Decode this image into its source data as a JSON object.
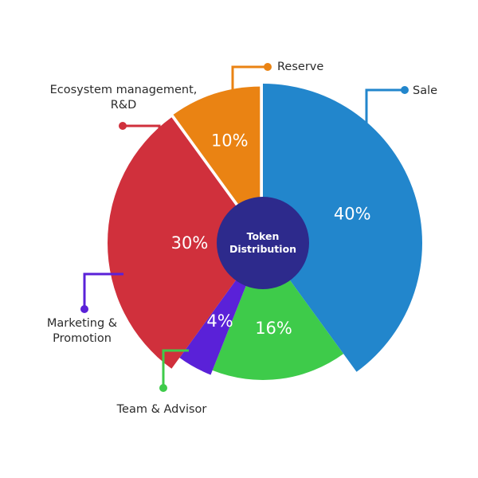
{
  "chart_data": {
    "type": "pie",
    "center_label": [
      "Token",
      "Distribution"
    ],
    "slices": [
      {
        "name": "Sale",
        "value": 40,
        "label": "40%",
        "color": "#2286cc"
      },
      {
        "name": "Team & Advisor",
        "value": 16,
        "label": "16%",
        "color": "#3ecb4a"
      },
      {
        "name": "Marketing & Promotion",
        "value": 4,
        "label": "4%",
        "color": "#5a21d8"
      },
      {
        "name": "Ecosystem management, R&D",
        "value": 30,
        "label": "30%",
        "color": "#d0303c"
      },
      {
        "name": "Reserve",
        "value": 10,
        "label": "10%",
        "color": "#ea8313"
      }
    ],
    "legend": [
      {
        "lines": [
          "Sale"
        ]
      },
      {
        "lines": [
          "Team & Advisor"
        ]
      },
      {
        "lines": [
          "Marketing &",
          "Promotion"
        ]
      },
      {
        "lines": [
          "Ecosystem management,",
          "R&D"
        ]
      },
      {
        "lines": [
          "Reserve"
        ]
      }
    ],
    "center_color": "#2d2a8c"
  }
}
